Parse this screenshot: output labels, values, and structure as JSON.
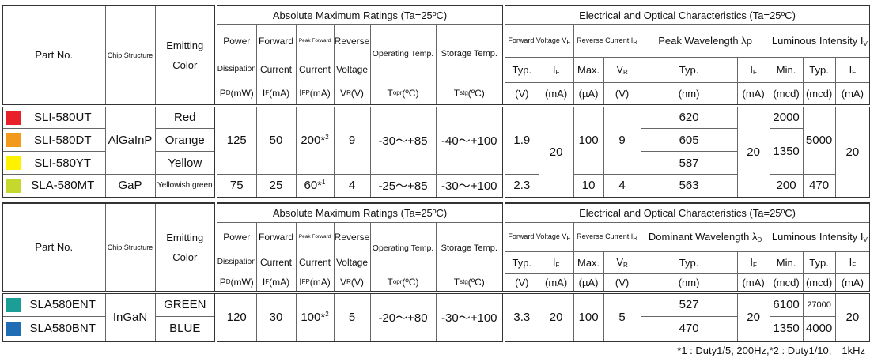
{
  "tables": [
    {
      "header": {
        "part_no": "Part No.",
        "chip_structure": "Chip Structure",
        "emitting_color": [
          "Emitting",
          "Color"
        ],
        "abs_title": "Absolute Maximum Ratings (Ta=25ºC)",
        "elec_title": "Electrical and Optical Characteristics (Ta=25ºC)",
        "abs_cols": [
          [
            "Power",
            "Dissipation",
            [
              "P",
              {
                "sub": "D"
              },
              "(mW)"
            ]
          ],
          [
            "Forward",
            "Current",
            [
              "I",
              {
                "sub": "F"
              },
              "(mA)"
            ]
          ],
          [
            "Peak Forward",
            "Current",
            [
              "I",
              {
                "sub": "FP"
              },
              "(mA)"
            ]
          ],
          [
            "Reverse",
            "Voltage",
            [
              "V",
              {
                "sub": "R"
              },
              "(V)"
            ]
          ],
          [
            "Operating Temp.",
            [
              "T",
              {
                "sub": "opr"
              },
              "(ºC)"
            ]
          ],
          [
            "Storage Temp.",
            [
              "T",
              {
                "sub": "stg"
              },
              "(ºC)"
            ]
          ]
        ],
        "elec_groups": [
          [
            "Forward Voltage V",
            {
              "sub": "F"
            }
          ],
          [
            "Reverse Current I",
            {
              "sub": "R"
            }
          ],
          "Peak Wavelength λp",
          [
            "Luminous Intensity I",
            {
              "sub": "V"
            }
          ]
        ],
        "elec_sub": [
          "Typ.",
          [
            "I",
            {
              "sub": "F"
            }
          ],
          "Max.",
          [
            "V",
            {
              "sub": "R"
            }
          ],
          "Typ.",
          [
            "I",
            {
              "sub": "F"
            }
          ],
          "Min.",
          "Typ.",
          [
            "I",
            {
              "sub": "F"
            }
          ]
        ],
        "elec_units": [
          "(V)",
          "(mA)",
          "(µA)",
          "(V)",
          "(nm)",
          "(mA)",
          "(mcd)",
          "(mcd)",
          "(mA)"
        ]
      },
      "rows": [
        {
          "swatch": "#e8202a",
          "cells": [
            "SLI-580UT",
            "AlGaInP",
            "Red",
            125,
            50,
            [
              "200*",
              {
                "sup": "2"
              }
            ],
            9,
            "-30～+85",
            "-40～+100",
            1.9,
            20,
            100,
            9,
            620,
            20,
            2000,
            5000,
            20
          ]
        },
        {
          "swatch": "#f39a1e",
          "cells": [
            "SLI-580DT",
            "Orange",
            605,
            1350
          ]
        },
        {
          "swatch": "#fff200",
          "cells": [
            "SLI-580YT",
            "Yellow",
            587
          ]
        },
        {
          "swatch": "#c4d82d",
          "cells": [
            "SLA-580MT",
            "GaP",
            "Yellowish green",
            75,
            25,
            [
              "60*",
              {
                "sup": "1"
              }
            ],
            4,
            "-25～+85",
            "-30～+100",
            2.3,
            10,
            4,
            563,
            200,
            470
          ]
        }
      ]
    },
    {
      "header": {
        "part_no": "Part No.",
        "chip_structure": "Chip Structure",
        "emitting_color": [
          "Emitting",
          "Color"
        ],
        "abs_title": "Absolute Maximum Ratings (Ta=25ºC)",
        "elec_title": "Electrical and Optical Characteristics (Ta=25ºC)",
        "abs_cols": [
          [
            "Power",
            "Dissipation",
            [
              "P",
              {
                "sub": "D"
              },
              "(mW)"
            ]
          ],
          [
            "Forward",
            "Current",
            [
              "I",
              {
                "sub": "F"
              },
              "(mA)"
            ]
          ],
          [
            "Peak Forward",
            "Current",
            [
              "I",
              {
                "sub": "FP"
              },
              "(mA)"
            ]
          ],
          [
            "Reverse",
            "Voltage",
            [
              "V",
              {
                "sub": "R"
              },
              "(V)"
            ]
          ],
          [
            "Operating Temp.",
            [
              "T",
              {
                "sub": "opr"
              },
              "(ºC)"
            ]
          ],
          [
            "Storage Temp.",
            [
              "T",
              {
                "sub": "stg"
              },
              "(ºC)"
            ]
          ]
        ],
        "elec_groups": [
          [
            "Forward Voltage V",
            {
              "sub": "F"
            }
          ],
          [
            "Reverse Current I",
            {
              "sub": "R"
            }
          ],
          [
            "Dominant Wavelength λ",
            {
              "sub": "D"
            }
          ],
          [
            "Luminous Intensity I",
            {
              "sub": "V"
            }
          ]
        ],
        "elec_sub": [
          "Typ.",
          [
            "I",
            {
              "sub": "F"
            }
          ],
          "Max.",
          [
            "V",
            {
              "sub": "R"
            }
          ],
          "Typ.",
          [
            "I",
            {
              "sub": "F"
            }
          ],
          "Min.",
          "Typ.",
          [
            "I",
            {
              "sub": "F"
            }
          ]
        ],
        "elec_units": [
          "(V)",
          "(mA)",
          "(µA)",
          "(V)",
          "(nm)",
          "(mA)",
          "(mcd)",
          "(mcd)",
          "(mA)"
        ]
      },
      "rows": [
        {
          "swatch": "#1a9e96",
          "cells": [
            "SLA580ENT",
            "InGaN",
            "GREEN",
            120,
            30,
            [
              "100*",
              {
                "sup": "2"
              }
            ],
            5,
            "-20～+80",
            "-30～+100",
            3.3,
            20,
            100,
            5,
            527,
            20,
            6100,
            27000,
            20
          ]
        },
        {
          "swatch": "#1f6db5",
          "cells": [
            "SLA580BNT",
            "BLUE",
            470,
            1350,
            4000
          ]
        }
      ]
    }
  ],
  "footnote": "*1 : Duty1/5, 200Hz,*2 : Duty1/10,　1kHz"
}
